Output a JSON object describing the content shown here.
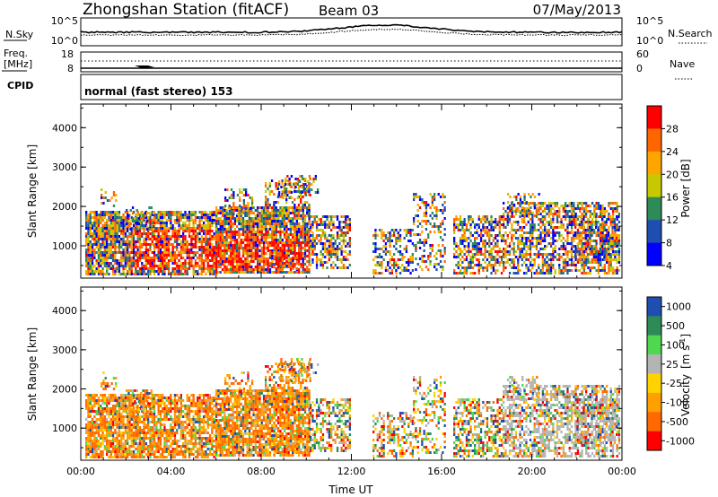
{
  "header": {
    "title": "Zhongshan Station (fitACF)",
    "beam": "Beam 03",
    "date": "07/May/2013"
  },
  "param_panels": {
    "nsky_label": "N.Sky",
    "nsky_ticks": [
      "10^5",
      "10^0"
    ],
    "nsearch_label": "N.Search",
    "nsearch_ticks": [
      "10^5",
      "10^0"
    ],
    "freq_label": "Freq.",
    "freq_unit": "[MHz]",
    "freq_ticks": [
      "18",
      "8"
    ],
    "nave_label": "Nave",
    "nave_ticks": [
      "60",
      "0"
    ],
    "cpid_label": "CPID",
    "cpid_text": "normal (fast stereo) 153"
  },
  "chart_data": [
    {
      "type": "heatmap",
      "title": "",
      "xlabel": "",
      "ylabel": "Slant Range [km]",
      "colorbar_label": "Power [dB]",
      "colorbar_ticks": [
        "28",
        "24",
        "20",
        "16",
        "12",
        "8",
        "4"
      ],
      "colorbar_colors": [
        "#ff0000",
        "#ff6600",
        "#ffa500",
        "#c8c800",
        "#2e8b57",
        "#1e4fb0",
        "#0000ff"
      ],
      "ylim": [
        180,
        4600
      ],
      "yticks": [
        "4000",
        "3000",
        "2000",
        "1000"
      ],
      "xlim": [
        "00:00",
        "00:00"
      ]
    },
    {
      "type": "heatmap",
      "title": "",
      "xlabel": "Time UT",
      "ylabel": "Slant Range [km]",
      "colorbar_label": "Velocity",
      "colorbar_unit": "[m s",
      "colorbar_unit_exp": "-1",
      "colorbar_unit_close": "]",
      "colorbar_ticks": [
        "1000",
        "500",
        "100",
        "25",
        "-25",
        "-100",
        "-500",
        "-1000"
      ],
      "colorbar_colors": [
        "#1e4fb0",
        "#2e8b57",
        "#4fd84f",
        "#b4b4b4",
        "#ffd200",
        "#ff9f00",
        "#ff6a00",
        "#ff0000"
      ],
      "ylim": [
        180,
        4600
      ],
      "yticks": [
        "4000",
        "3000",
        "2000",
        "1000"
      ],
      "xticks": [
        "00:00",
        "04:00",
        "08:00",
        "12:00",
        "16:00",
        "20:00",
        "00:00"
      ]
    }
  ]
}
